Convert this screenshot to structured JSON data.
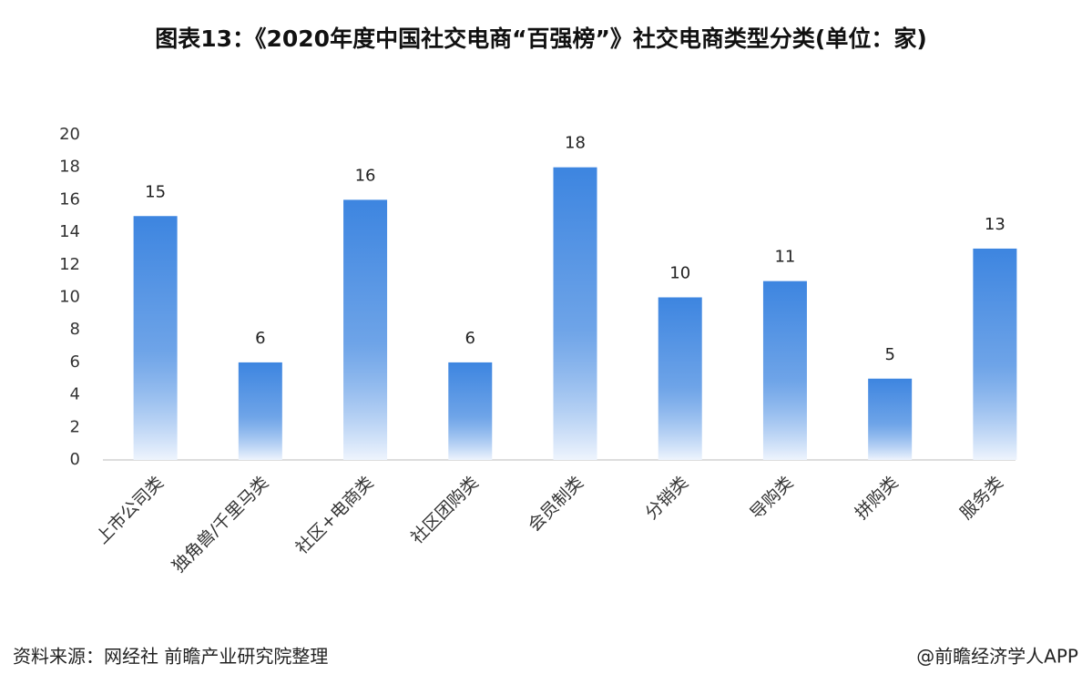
{
  "chart_data": {
    "type": "bar",
    "title": "图表13：《2020年度中国社交电商“百强榜”》社交电商类型分类(单位：家)",
    "categories": [
      "上市公司类",
      "独角兽/千里马类",
      "社区+电商类",
      "社区团购类",
      "会员制类",
      "分销类",
      "导购类",
      "拼购类",
      "服务类"
    ],
    "values": [
      15,
      6,
      16,
      6,
      18,
      10,
      11,
      5,
      13
    ],
    "color": "#3d85e0",
    "ylim": [
      0,
      20
    ],
    "yticks": [
      0,
      2,
      4,
      6,
      8,
      10,
      12,
      14,
      16,
      18,
      20
    ],
    "grid": false,
    "source": "资料来源：网经社 前瞻产业研究院整理",
    "credit": "@前瞻经济学人APP"
  }
}
